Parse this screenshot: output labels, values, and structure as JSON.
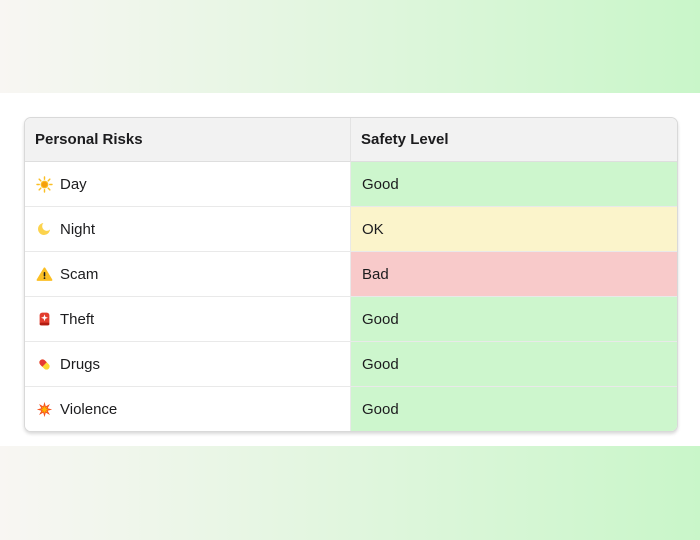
{
  "background": {
    "gradient_left": "#f8f6f3",
    "gradient_right": "#c9f6c9"
  },
  "table": {
    "header_bg": "#f2f2f2",
    "columns": [
      {
        "label": "Personal Risks"
      },
      {
        "label": "Safety Level"
      }
    ],
    "rows": [
      {
        "emoji": "☀️",
        "icon": "sun-icon",
        "risk": "Day",
        "level": "Good"
      },
      {
        "emoji": "🌙",
        "icon": "crescent-moon-icon",
        "risk": "Night",
        "level": "OK"
      },
      {
        "emoji": "⚠️",
        "icon": "warning-icon",
        "risk": "Scam",
        "level": "Bad"
      },
      {
        "emoji": "🚨",
        "icon": "police-light-icon",
        "risk": "Theft",
        "level": "Good"
      },
      {
        "emoji": "💊",
        "icon": "pill-icon",
        "risk": "Drugs",
        "level": "Good"
      },
      {
        "emoji": "💥",
        "icon": "collision-icon",
        "risk": "Violence",
        "level": "Good"
      }
    ],
    "level_colors": {
      "Good": "#cdf6cd",
      "OK": "#fbf4cb",
      "Bad": "#f8caca"
    }
  }
}
